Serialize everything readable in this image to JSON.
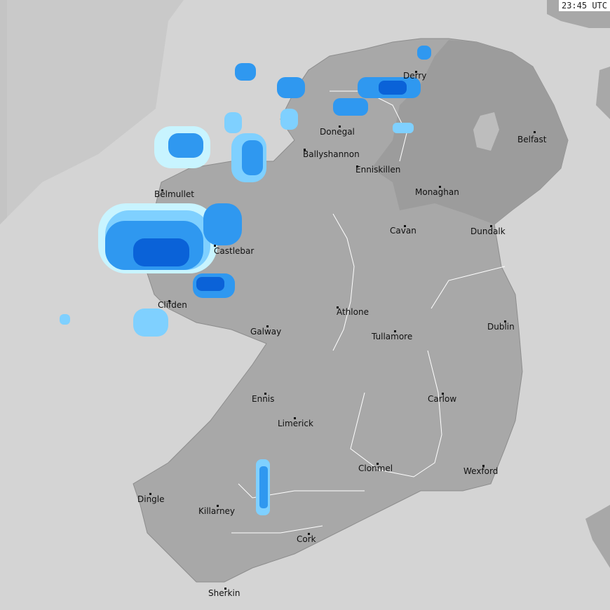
{
  "timestamp": "23:45 UTC",
  "colors": {
    "sea": "#d4d4d4",
    "coverage_edge": "#c9c9c9",
    "land": "#a8a8a8",
    "northern_ireland": "#9c9c9c",
    "rain_light": "#c8f4ff",
    "rain_moderate": "#7fd0ff",
    "rain_heavy": "#2f98f0",
    "rain_very_heavy": "#0a62d8"
  },
  "cities": [
    {
      "name": "Derry"
    },
    {
      "name": "Donegal"
    },
    {
      "name": "Ballyshannon"
    },
    {
      "name": "Enniskillen"
    },
    {
      "name": "Belfast"
    },
    {
      "name": "Monaghan"
    },
    {
      "name": "Belmullet"
    },
    {
      "name": "Cavan"
    },
    {
      "name": "Dundalk"
    },
    {
      "name": "Castlebar"
    },
    {
      "name": "Athlone"
    },
    {
      "name": "Tullamore"
    },
    {
      "name": "Dublin"
    },
    {
      "name": "Galway"
    },
    {
      "name": "Clifden"
    },
    {
      "name": "Ennis"
    },
    {
      "name": "Limerick"
    },
    {
      "name": "Carlow"
    },
    {
      "name": "Clonmel"
    },
    {
      "name": "Wexford"
    },
    {
      "name": "Dingle"
    },
    {
      "name": "Killarney"
    },
    {
      "name": "Cork"
    },
    {
      "name": "Sherkin"
    }
  ]
}
